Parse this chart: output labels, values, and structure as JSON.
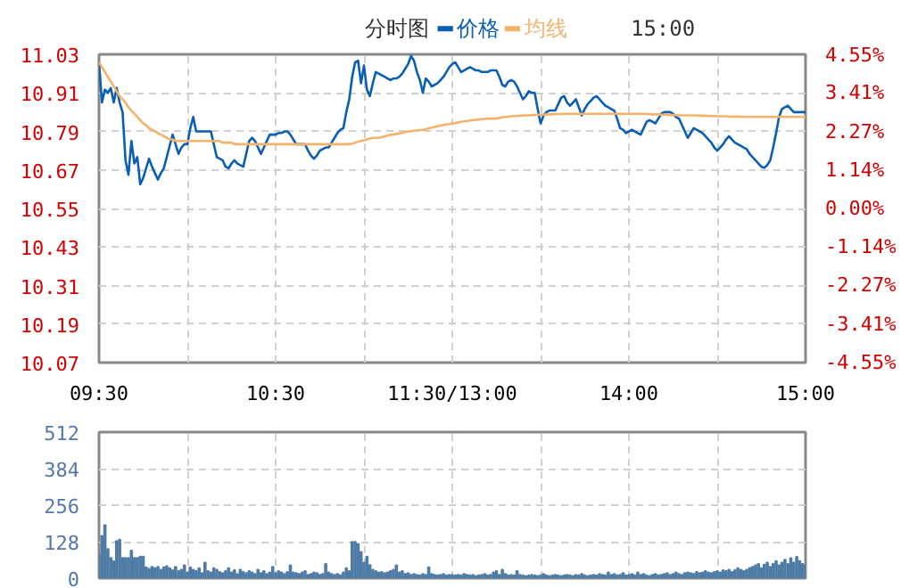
{
  "chart_data": [
    {
      "type": "line",
      "title": "分时图",
      "subtitle": "15:00",
      "legend": "top",
      "grid": true,
      "line_style": "solid",
      "categories": [
        "09:30",
        null,
        null,
        null,
        null,
        null,
        null,
        null,
        null,
        null,
        null,
        null,
        null,
        null,
        null,
        null,
        null,
        null,
        null,
        null,
        null,
        null,
        null,
        null,
        null,
        null,
        null,
        null,
        null,
        null,
        null,
        null,
        null,
        null,
        null,
        null,
        null,
        null,
        null,
        null,
        null,
        null,
        null,
        null,
        null,
        null,
        null,
        null,
        null,
        null,
        null,
        null,
        null,
        null,
        null,
        null,
        null,
        null,
        null,
        null,
        "10:30",
        null,
        null,
        null,
        null,
        null,
        null,
        null,
        null,
        null,
        null,
        null,
        null,
        null,
        null,
        null,
        null,
        null,
        null,
        null,
        null,
        null,
        null,
        null,
        null,
        null,
        null,
        null,
        null,
        null,
        null,
        null,
        null,
        null,
        null,
        null,
        null,
        null,
        null,
        null,
        null,
        null,
        null,
        null,
        null,
        null,
        null,
        null,
        null,
        null,
        null,
        null,
        null,
        null,
        null,
        null,
        null,
        null,
        null,
        null,
        "11:30/13:00",
        null,
        null,
        null,
        null,
        null,
        null,
        null,
        null,
        null,
        null,
        null,
        null,
        null,
        null,
        null,
        null,
        null,
        null,
        null,
        null,
        null,
        null,
        null,
        null,
        null,
        null,
        null,
        null,
        null,
        null,
        null,
        null,
        null,
        null,
        null,
        null,
        null,
        null,
        null,
        null,
        null,
        null,
        null,
        null,
        null,
        null,
        null,
        null,
        null,
        null,
        null,
        null,
        null,
        null,
        null,
        null,
        null,
        null,
        null,
        "14:00",
        null,
        null,
        null,
        null,
        null,
        null,
        null,
        null,
        null,
        null,
        null,
        null,
        null,
        null,
        null,
        null,
        null,
        null,
        null,
        null,
        null,
        null,
        null,
        null,
        null,
        null,
        null,
        null,
        null,
        null,
        null,
        null,
        null,
        null,
        null,
        null,
        null,
        null,
        null,
        null,
        null,
        null,
        null,
        null,
        null,
        null,
        null,
        null,
        null,
        null,
        null,
        null,
        null,
        null,
        null,
        null,
        null,
        null,
        null,
        "15:00"
      ],
      "ylim": [
        10.07,
        11.03
      ],
      "yticks": [
        10.07,
        10.19,
        10.31,
        10.43,
        10.55,
        10.67,
        10.79,
        10.91,
        11.03
      ],
      "y2lim": [
        -4.55,
        4.55
      ],
      "y2ticks": [
        {
          "value": -4.55,
          "label": "-4.55%"
        },
        {
          "value": -3.41,
          "label": "-3.41%"
        },
        {
          "value": -2.27,
          "label": "-2.27%"
        },
        {
          "value": -1.14,
          "label": "-1.14%"
        },
        {
          "value": 0,
          "label": "0.00%"
        },
        {
          "value": 1.14,
          "label": "1.14%"
        },
        {
          "value": 2.27,
          "label": "2.27%"
        },
        {
          "value": 3.41,
          "label": "3.41%"
        },
        {
          "value": 4.55,
          "label": "4.55%"
        }
      ],
      "series": [
        {
          "name": "价格",
          "color": "#0a5fb4",
          "values": [
            11.005,
            10.88,
            10.92,
            10.91,
            10.925,
            10.88,
            10.925,
            10.88,
            10.85,
            10.7,
            10.655,
            10.76,
            10.69,
            10.71,
            10.625,
            10.645,
            10.675,
            10.705,
            10.68,
            10.66,
            10.64,
            10.66,
            10.675,
            10.71,
            10.745,
            10.78,
            10.75,
            10.72,
            10.74,
            10.75,
            10.75,
            10.8,
            10.835,
            10.79,
            10.79,
            10.79,
            10.79,
            10.79,
            10.79,
            10.75,
            10.71,
            10.705,
            10.7,
            10.68,
            10.675,
            10.69,
            10.7,
            10.69,
            10.685,
            10.68,
            10.72,
            10.76,
            10.77,
            10.76,
            10.74,
            10.72,
            10.74,
            10.76,
            10.78,
            10.78,
            10.78,
            10.785,
            10.785,
            10.79,
            10.79,
            10.78,
            10.765,
            10.75,
            10.75,
            10.75,
            10.75,
            10.73,
            10.715,
            10.705,
            10.715,
            10.73,
            10.735,
            10.74,
            10.74,
            10.755,
            10.77,
            10.785,
            10.795,
            10.8,
            10.85,
            10.89,
            10.96,
            11.005,
            11.01,
            10.94,
            10.995,
            10.92,
            10.9,
            10.94,
            10.975,
            10.97,
            10.965,
            10.96,
            10.955,
            10.95,
            10.955,
            10.955,
            10.96,
            10.97,
            10.985,
            11.0,
            11.025,
            11.01,
            10.975,
            10.95,
            10.91,
            10.955,
            10.945,
            10.93,
            10.935,
            10.94,
            10.95,
            10.96,
            10.975,
            10.99,
            11.0,
            11.005,
            10.99,
            10.975,
            10.98,
            10.985,
            10.99,
            10.985,
            10.98,
            10.98,
            10.975,
            10.975,
            10.975,
            10.98,
            10.98,
            10.98,
            10.96,
            10.935,
            10.93,
            10.945,
            10.95,
            10.945,
            10.93,
            10.91,
            10.89,
            10.9,
            10.915,
            10.91,
            10.91,
            10.86,
            10.815,
            10.84,
            10.85,
            10.855,
            10.855,
            10.855,
            10.875,
            10.895,
            10.9,
            10.88,
            10.87,
            10.88,
            10.89,
            10.865,
            10.84,
            10.86,
            10.875,
            10.885,
            10.895,
            10.9,
            10.89,
            10.88,
            10.87,
            10.865,
            10.86,
            10.855,
            10.83,
            10.8,
            10.795,
            10.785,
            10.79,
            10.795,
            10.79,
            10.785,
            10.78,
            10.8,
            10.82,
            10.825,
            10.82,
            10.815,
            10.83,
            10.845,
            10.85,
            10.85,
            10.85,
            10.845,
            10.835,
            10.83,
            10.81,
            10.79,
            10.77,
            10.785,
            10.8,
            10.795,
            10.79,
            10.785,
            10.775,
            10.765,
            10.755,
            10.74,
            10.73,
            10.74,
            10.75,
            10.765,
            10.775,
            10.765,
            10.755,
            10.75,
            10.745,
            10.74,
            10.735,
            10.72,
            10.71,
            10.7,
            10.69,
            10.68,
            10.677,
            10.685,
            10.7,
            10.74,
            10.785,
            10.835,
            10.86,
            10.865,
            10.87,
            10.86,
            10.85,
            10.85,
            10.85,
            10.85,
            10.85
          ]
        },
        {
          "name": "均线",
          "color": "#f5b26b",
          "values": [
            11.005,
            10.99,
            10.975,
            10.96,
            10.945,
            10.93,
            10.915,
            10.9,
            10.89,
            10.88,
            10.865,
            10.855,
            10.845,
            10.835,
            10.825,
            10.815,
            10.81,
            10.8,
            10.795,
            10.79,
            10.785,
            10.78,
            10.775,
            10.77,
            10.765,
            10.765,
            10.76,
            10.76,
            10.76,
            10.76,
            10.76,
            10.76,
            10.76,
            10.76,
            10.76,
            10.76,
            10.76,
            10.76,
            10.76,
            10.76,
            10.76,
            10.76,
            10.755,
            10.755,
            10.755,
            10.755,
            10.75,
            10.75,
            10.75,
            10.75,
            10.75,
            10.75,
            10.75,
            10.75,
            10.75,
            10.75,
            10.75,
            10.75,
            10.75,
            10.75,
            10.75,
            10.75,
            10.75,
            10.75,
            10.75,
            10.75,
            10.75,
            10.75,
            10.75,
            10.75,
            10.75,
            10.75,
            10.75,
            10.75,
            10.75,
            10.75,
            10.75,
            10.75,
            10.75,
            10.75,
            10.75,
            10.75,
            10.75,
            10.75,
            10.75,
            10.75,
            10.752,
            10.755,
            10.758,
            10.76,
            10.762,
            10.765,
            10.768,
            10.77,
            10.77,
            10.77,
            10.772,
            10.775,
            10.777,
            10.78,
            10.78,
            10.782,
            10.784,
            10.786,
            10.788,
            10.79,
            10.79,
            10.792,
            10.793,
            10.794,
            10.795,
            10.797,
            10.8,
            10.802,
            10.804,
            10.806,
            10.808,
            10.81,
            10.812,
            10.813,
            10.815,
            10.816,
            10.818,
            10.82,
            10.821,
            10.822,
            10.824,
            10.825,
            10.826,
            10.827,
            10.828,
            10.829,
            10.83,
            10.83,
            10.83,
            10.83,
            10.832,
            10.834,
            10.835,
            10.836,
            10.837,
            10.838,
            10.838,
            10.839,
            10.84,
            10.84,
            10.84,
            10.841,
            10.841,
            10.842,
            10.842,
            10.842,
            10.843,
            10.843,
            10.843,
            10.844,
            10.844,
            10.844,
            10.845,
            10.845,
            10.845,
            10.845,
            10.845,
            10.845,
            10.845,
            10.845,
            10.845,
            10.845,
            10.845,
            10.845,
            10.845,
            10.845,
            10.845,
            10.845,
            10.845,
            10.845,
            10.845,
            10.845,
            10.845,
            10.845,
            10.845,
            10.845,
            10.845,
            10.845,
            10.845,
            10.845,
            10.844,
            10.844,
            10.843,
            10.843,
            10.843,
            10.842,
            10.842,
            10.842,
            10.841,
            10.841,
            10.841,
            10.84,
            10.84,
            10.84,
            10.84,
            10.84,
            10.84,
            10.84,
            10.839,
            10.839,
            10.839,
            10.838,
            10.838,
            10.838,
            10.837,
            10.837,
            10.837,
            10.837,
            10.836,
            10.836,
            10.836,
            10.836,
            10.836,
            10.835,
            10.835,
            10.835,
            10.835,
            10.835,
            10.835,
            10.835,
            10.835,
            10.835,
            10.835,
            10.835,
            10.835,
            10.835,
            10.835,
            10.835,
            10.835,
            10.835,
            10.835,
            10.835,
            10.835,
            10.835,
            10.835
          ]
        }
      ]
    },
    {
      "type": "bar",
      "grid": true,
      "tick_labels": "y",
      "color": "#4f7ca6",
      "categories": [
        null,
        null,
        null,
        null,
        null,
        null,
        null,
        null,
        null,
        null,
        null,
        null,
        null,
        null,
        null,
        null,
        null,
        null,
        null,
        null,
        null,
        null,
        null,
        null,
        null,
        null,
        null,
        null,
        null,
        null,
        null,
        null,
        null,
        null,
        null,
        null,
        null,
        null,
        null,
        null,
        null,
        null,
        null,
        null,
        null,
        null,
        null,
        null,
        null,
        null,
        null,
        null,
        null,
        null,
        null,
        null,
        null,
        null,
        null,
        null,
        null,
        null,
        null,
        null,
        null,
        null,
        null,
        null,
        null,
        null,
        null,
        null,
        null,
        null,
        null,
        null,
        null,
        null,
        null,
        null,
        null,
        null,
        null,
        null,
        null,
        null,
        null,
        null,
        null,
        null,
        null,
        null,
        null,
        null,
        null,
        null,
        null,
        null,
        null,
        null,
        null,
        null,
        null,
        null,
        null,
        null,
        null,
        null,
        null,
        null,
        null,
        null,
        null,
        null,
        null,
        null,
        null,
        null,
        null,
        null,
        null,
        null,
        null,
        null,
        null,
        null,
        null,
        null,
        null,
        null,
        null,
        null,
        null,
        null,
        null,
        null,
        null,
        null,
        null,
        null,
        null,
        null,
        null,
        null,
        null,
        null,
        null,
        null,
        null,
        null,
        null,
        null,
        null,
        null,
        null,
        null,
        null,
        null,
        null,
        null,
        null,
        null,
        null,
        null,
        null,
        null,
        null,
        null,
        null,
        null,
        null,
        null,
        null,
        null,
        null,
        null,
        null,
        null,
        null,
        null,
        null,
        null,
        null,
        null,
        null,
        null,
        null,
        null,
        null,
        null,
        null,
        null,
        null,
        null,
        null,
        null,
        null,
        null,
        null,
        null,
        null,
        null,
        null,
        null,
        null,
        null,
        null,
        null,
        null,
        null,
        null,
        null,
        null,
        null,
        null,
        null,
        null,
        null,
        null,
        null,
        null,
        null,
        null,
        null,
        null,
        null,
        null,
        null,
        null,
        null,
        null,
        null,
        null,
        null,
        null,
        null,
        null,
        null,
        null,
        null,
        null
      ],
      "ylim": [
        0,
        512
      ],
      "yticks": [
        0,
        128,
        256,
        384,
        512
      ],
      "values": [
        84,
        148,
        186,
        102,
        71,
        59,
        130,
        135,
        71,
        71,
        71,
        97,
        71,
        71,
        76,
        76,
        38,
        33,
        40,
        35,
        40,
        30,
        38,
        42,
        35,
        28,
        40,
        25,
        30,
        45,
        20,
        38,
        30,
        25,
        35,
        18,
        55,
        25,
        20,
        35,
        30,
        22,
        18,
        25,
        35,
        20,
        28,
        15,
        30,
        22,
        18,
        25,
        20,
        15,
        30,
        18,
        25,
        15,
        20,
        40,
        18,
        25,
        20,
        15,
        22,
        45,
        20,
        18,
        15,
        20,
        25,
        12,
        15,
        20,
        18,
        12,
        15,
        50,
        20,
        15,
        12,
        15,
        10,
        20,
        35,
        25,
        127,
        127,
        120,
        92,
        55,
        76,
        46,
        30,
        25,
        20,
        22,
        18,
        20,
        25,
        30,
        45,
        20,
        25,
        15,
        18,
        12,
        15,
        12,
        10,
        15,
        12,
        38,
        15,
        12,
        10,
        12,
        15,
        10,
        12,
        12,
        10,
        12,
        10,
        15,
        12,
        10,
        12,
        8,
        10,
        12,
        15,
        10,
        12,
        20,
        25,
        12,
        30,
        15,
        10,
        12,
        10,
        25,
        12,
        10,
        8,
        10,
        12,
        10,
        8,
        10,
        15,
        10,
        8,
        10,
        12,
        10,
        8,
        10,
        12,
        10,
        8,
        12,
        10,
        15,
        10,
        8,
        10,
        12,
        10,
        15,
        12,
        10,
        20,
        12,
        15,
        10,
        12,
        18,
        10,
        12,
        15,
        10,
        20,
        12,
        15,
        10,
        8,
        12,
        15,
        10,
        12,
        15,
        18,
        12,
        15,
        20,
        15,
        12,
        18,
        20,
        18,
        15,
        22,
        18,
        20,
        25,
        20,
        18,
        22,
        25,
        20,
        28,
        25,
        30,
        22,
        28,
        35,
        30,
        25,
        30,
        35,
        40,
        45,
        50,
        35,
        48,
        55,
        40,
        50,
        60,
        45,
        55,
        65,
        50,
        70,
        55,
        75,
        60,
        50,
        45
      ]
    }
  ]
}
